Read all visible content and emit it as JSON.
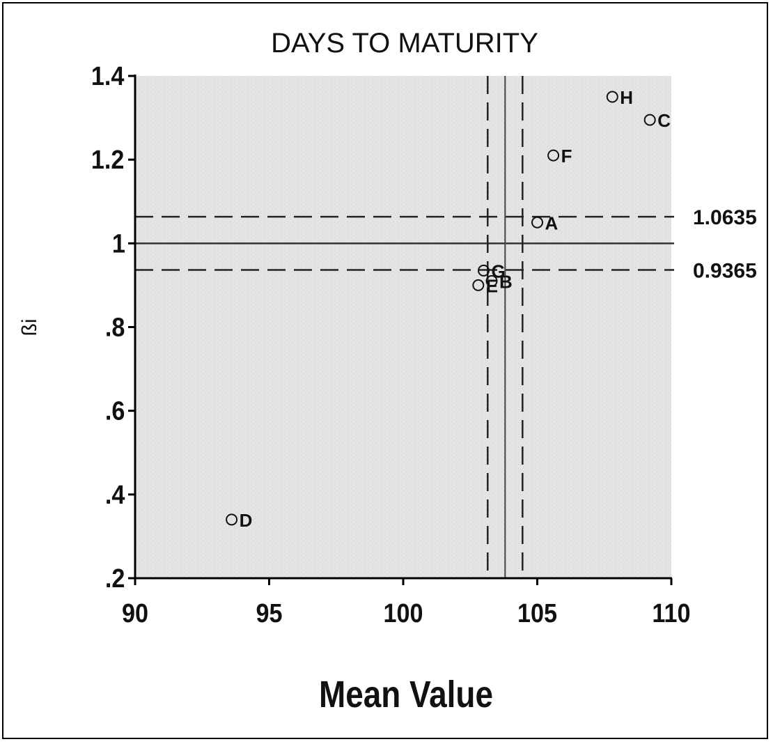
{
  "chart_data": {
    "type": "scatter",
    "title": "DAYS TO MATURITY",
    "xlabel": "Mean Value",
    "ylabel": "ßi",
    "xlim": [
      90,
      110
    ],
    "ylim": [
      0.2,
      1.4
    ],
    "xticks": [
      {
        "value": 90,
        "label": "90"
      },
      {
        "value": 95,
        "label": "95"
      },
      {
        "value": 100,
        "label": "100"
      },
      {
        "value": 105,
        "label": "105"
      },
      {
        "value": 110,
        "label": "110"
      }
    ],
    "yticks": [
      {
        "value": 0.2,
        "label": ".2"
      },
      {
        "value": 0.4,
        "label": ".4"
      },
      {
        "value": 0.6,
        "label": ".6"
      },
      {
        "value": 0.8,
        "label": ".8"
      },
      {
        "value": 1.0,
        "label": "1"
      },
      {
        "value": 1.2,
        "label": "1.2"
      },
      {
        "value": 1.4,
        "label": "1.4"
      }
    ],
    "points": [
      {
        "label": "H",
        "x": 107.8,
        "y": 1.35
      },
      {
        "label": "C",
        "x": 109.2,
        "y": 1.295
      },
      {
        "label": "F",
        "x": 105.6,
        "y": 1.21
      },
      {
        "label": "A",
        "x": 105.0,
        "y": 1.05
      },
      {
        "label": "G",
        "x": 103.0,
        "y": 0.935
      },
      {
        "label": "B",
        "x": 103.3,
        "y": 0.91
      },
      {
        "label": "E",
        "x": 102.8,
        "y": 0.9
      },
      {
        "label": "D",
        "x": 93.6,
        "y": 0.34
      }
    ],
    "reference_lines": {
      "horizontal_solid": 1.0,
      "horizontal_dashed": [
        {
          "value": 1.0635,
          "label": "1.0635"
        },
        {
          "value": 0.9365,
          "label": "0.9365"
        }
      ],
      "vertical_solid": 103.8,
      "vertical_dashed": [
        103.15,
        104.45
      ]
    },
    "grid": false,
    "legend": "none",
    "colors": {
      "plot_background": "#e2e2e2",
      "marks": "#111111"
    }
  }
}
